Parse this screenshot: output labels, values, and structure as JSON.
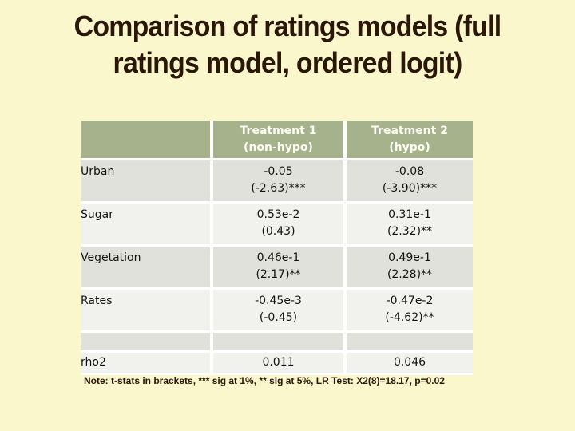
{
  "slide": {
    "title": "Comparison of ratings models (full\nratings model, ordered logit)",
    "footnote": "Note: t-stats in brackets, *** sig at 1%, ** sig at 5%, LR Test: X2(8)=18.17, p=0.02"
  },
  "table": {
    "header": [
      "",
      "Treatment 1\n(non-hypo)",
      "Treatment 2\n(hypo)"
    ],
    "rows": [
      {
        "label": "Urban",
        "treatment1": "-0.05\n(-2.63)***",
        "treatment2": "-0.08\n(-3.90)***"
      },
      {
        "label": "Sugar",
        "treatment1": "0.53e-2\n(0.43)",
        "treatment2": "0.31e-1\n(2.32)**"
      },
      {
        "label": "Vegetation",
        "treatment1": "0.46e-1\n(2.17)**",
        "treatment2": "0.49e-1\n(2.28)**"
      },
      {
        "label": "Rates",
        "treatment1": "-0.45e-3\n(-0.45)",
        "treatment2": "-0.47e-2\n(-4.62)**"
      },
      {
        "label": "",
        "treatment1": "",
        "treatment2": ""
      },
      {
        "label": "rho2",
        "treatment1": "0.011",
        "treatment2": "0.046"
      }
    ]
  },
  "colors": {
    "background": "#FBF7CD",
    "header_background": "#A6B28B",
    "header_text": "#FCFDF3",
    "row_dark": "#E0E1DA",
    "row_light": "#F1F2ED",
    "separator": "#FFFFFF",
    "title_text": "#2B1708",
    "footnote_text": "#2B1708",
    "table_text": "#141414"
  }
}
